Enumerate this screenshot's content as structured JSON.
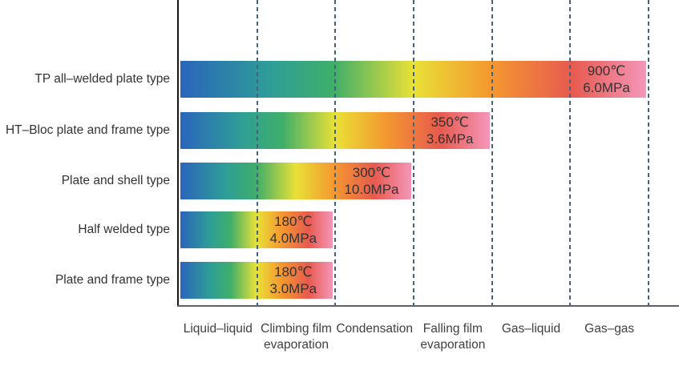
{
  "chart_data": {
    "type": "bar",
    "orientation": "horizontal",
    "title": "",
    "description": "Application range of plate heat exchanger types across duties, with maximum temperature and pressure shown at the end of each bar",
    "x_categories": [
      {
        "line1": "Liquid–liquid",
        "line2": ""
      },
      {
        "line1": "Climbing film",
        "line2": "evaporation"
      },
      {
        "line1": "Condensation",
        "line2": ""
      },
      {
        "line1": "Falling film",
        "line2": "evaporation"
      },
      {
        "line1": "Gas–liquid",
        "line2": ""
      },
      {
        "line1": "Gas–gas",
        "line2": ""
      }
    ],
    "rows": [
      {
        "label": "TP all–welded plate type",
        "extent_segments": 6,
        "max_temperature": "900℃",
        "max_pressure": "6.0MPa"
      },
      {
        "label": "HT–Bloc plate and frame type",
        "extent_segments": 4,
        "max_temperature": "350℃",
        "max_pressure": "3.6MPa"
      },
      {
        "label": "Plate and shell type",
        "extent_segments": 3,
        "max_temperature": "300℃",
        "max_pressure": "10.0MPa"
      },
      {
        "label": "Half welded type",
        "extent_segments": 2,
        "max_temperature": "180℃",
        "max_pressure": "4.0MPa"
      },
      {
        "label": "Plate and frame type",
        "extent_segments": 2,
        "max_temperature": "180℃",
        "max_pressure": "3.0MPa"
      }
    ],
    "colors": {
      "bar_gradient_stops": [
        {
          "pos": 0,
          "color": "#2a65bc"
        },
        {
          "pos": 20,
          "color": "#2f9f96"
        },
        {
          "pos": 33,
          "color": "#3fae69"
        },
        {
          "pos": 50,
          "color": "#e9e137"
        },
        {
          "pos": 66,
          "color": "#f49a2f"
        },
        {
          "pos": 84,
          "color": "#e75a4e"
        },
        {
          "pos": 100,
          "color": "#f496ba"
        }
      ],
      "gridline": "#44627c",
      "axis_vertical": "#161616",
      "axis_horizontal": "#5e6266",
      "bar_value_text": "#333333",
      "row_label_text": "#333333",
      "x_label_text": "#404040"
    },
    "gridline_style": "dashed-vertical",
    "legend": "none"
  }
}
